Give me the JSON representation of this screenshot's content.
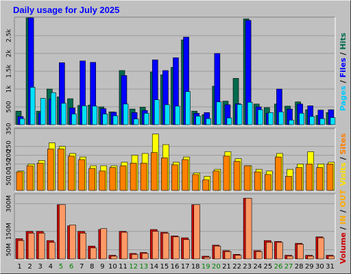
{
  "title": "Daily usage for July 2025",
  "colors": {
    "background": "#c0c0c0",
    "plot_bg": "#c0c0c0",
    "title": "#0000ff",
    "hits": "#006a4e",
    "files": "#0000ff",
    "pages": "#00e0ff",
    "visits": "#ffff00",
    "sites": "#ff8000",
    "kbytes": "#cc0000",
    "weekend": "#008000",
    "weekday": "#000000"
  },
  "labels": {
    "top": [
      {
        "text": "Pages",
        "color": "#00c8ff"
      },
      {
        "text": " / ",
        "color": "#000000"
      },
      {
        "text": "Files",
        "color": "#0000ff"
      },
      {
        "text": " / ",
        "color": "#000000"
      },
      {
        "text": "Hits",
        "color": "#006a4e"
      }
    ],
    "mid": [
      {
        "text": "Visits",
        "color": "#ffe000"
      },
      {
        "text": " / ",
        "color": "#000000"
      },
      {
        "text": "Sites",
        "color": "#ff8000"
      }
    ],
    "bottom": [
      {
        "text": "Volume",
        "color": "#cc0000"
      },
      {
        "text": " / ",
        "color": "#000000"
      },
      {
        "text": "IN",
        "color": "#ffaa00"
      },
      {
        "text": " / ",
        "color": "#000000"
      },
      {
        "text": "OUT",
        "color": "#ffaa00"
      }
    ]
  },
  "chart_data": {
    "type": "bar",
    "days": [
      "1",
      "2",
      "3",
      "4",
      "5",
      "6",
      "7",
      "8",
      "9",
      "10",
      "11",
      "12",
      "13",
      "14",
      "15",
      "16",
      "17",
      "18",
      "19",
      "20",
      "21",
      "22",
      "23",
      "24",
      "25",
      "26",
      "27",
      "28",
      "29",
      "30",
      "31"
    ],
    "weekend_days": [
      "5",
      "6",
      "12",
      "13",
      "19",
      "20",
      "26",
      "27"
    ],
    "panels": [
      {
        "id": "hits-files-pages",
        "ylim": [
          0,
          3000
        ],
        "ticks": [
          "500",
          "1k",
          "1.5k",
          "2k",
          "2.5k"
        ],
        "tick_values": [
          500,
          1000,
          1500,
          2000,
          2500
        ],
        "series": [
          {
            "name": "Hits",
            "values": [
              380,
              3000,
              380,
              1000,
              780,
              730,
              540,
              550,
              500,
              360,
              1520,
              440,
              490,
              1480,
              1400,
              1610,
              2380,
              380,
              280,
              1080,
              660,
              1300,
              2970,
              580,
              480,
              580,
              520,
              640,
              420,
              260,
              340
            ]
          },
          {
            "name": "Files",
            "values": [
              230,
              3000,
              330,
              720,
              1740,
              470,
              1790,
              1750,
              450,
              350,
              1380,
              340,
              400,
              1820,
              1520,
              1880,
              2460,
              320,
              340,
              2000,
              560,
              590,
              2930,
              500,
              320,
              1000,
              440,
              580,
              530,
              410,
              420
            ]
          },
          {
            "name": "Pages",
            "values": [
              170,
              1050,
              740,
              900,
              600,
              300,
              530,
              520,
              300,
              250,
              580,
              160,
              320,
              700,
              560,
              520,
              930,
              240,
              170,
              640,
              190,
              570,
              630,
              420,
              340,
              360,
              130,
              320,
              230,
              170,
              200
            ]
          }
        ]
      },
      {
        "id": "visits-sites",
        "ylim": [
          0,
          350
        ],
        "ticks": [
          "50",
          "100",
          "150",
          "200",
          "250",
          "350"
        ],
        "tick_values": [
          50,
          100,
          150,
          200,
          250,
          350
        ],
        "series": [
          {
            "name": "Visits",
            "values": [
              110,
              150,
              170,
              270,
              250,
              210,
              190,
              140,
              140,
              140,
              160,
              200,
              210,
              320,
              260,
              160,
              190,
              100,
              80,
              120,
              220,
              180,
              140,
              120,
              110,
              210,
              120,
              150,
              220,
              150,
              160
            ]
          },
          {
            "name": "Sites",
            "values": [
              105,
              140,
              155,
              235,
              235,
              195,
              175,
              125,
              110,
              130,
              140,
              155,
              155,
              215,
              185,
              145,
              175,
              90,
              60,
              110,
              195,
              165,
              140,
              105,
              90,
              190,
              80,
              130,
              150,
              130,
              150
            ]
          }
        ]
      },
      {
        "id": "volume",
        "ylim": [
          0,
          350
        ],
        "ticks": [
          "50M",
          "150M",
          "300M"
        ],
        "tick_values": [
          50,
          150,
          300
        ],
        "series": [
          {
            "name": "Volume",
            "values": [
              110,
              150,
              150,
              100,
              295,
              180,
              150,
              70,
              160,
              20,
              150,
              30,
              35,
              160,
              145,
              125,
              115,
              295,
              15,
              75,
              45,
              25,
              330,
              45,
              100,
              95,
              20,
              85,
              20,
              120,
              20
            ]
          },
          {
            "name": "IN/OUT",
            "values": [
              100,
              140,
              140,
              90,
              295,
              185,
              140,
              60,
              165,
              15,
              145,
              25,
              30,
              150,
              140,
              120,
              105,
              295,
              10,
              70,
              40,
              20,
              330,
              40,
              90,
              90,
              15,
              80,
              15,
              115,
              15
            ]
          }
        ]
      }
    ]
  }
}
